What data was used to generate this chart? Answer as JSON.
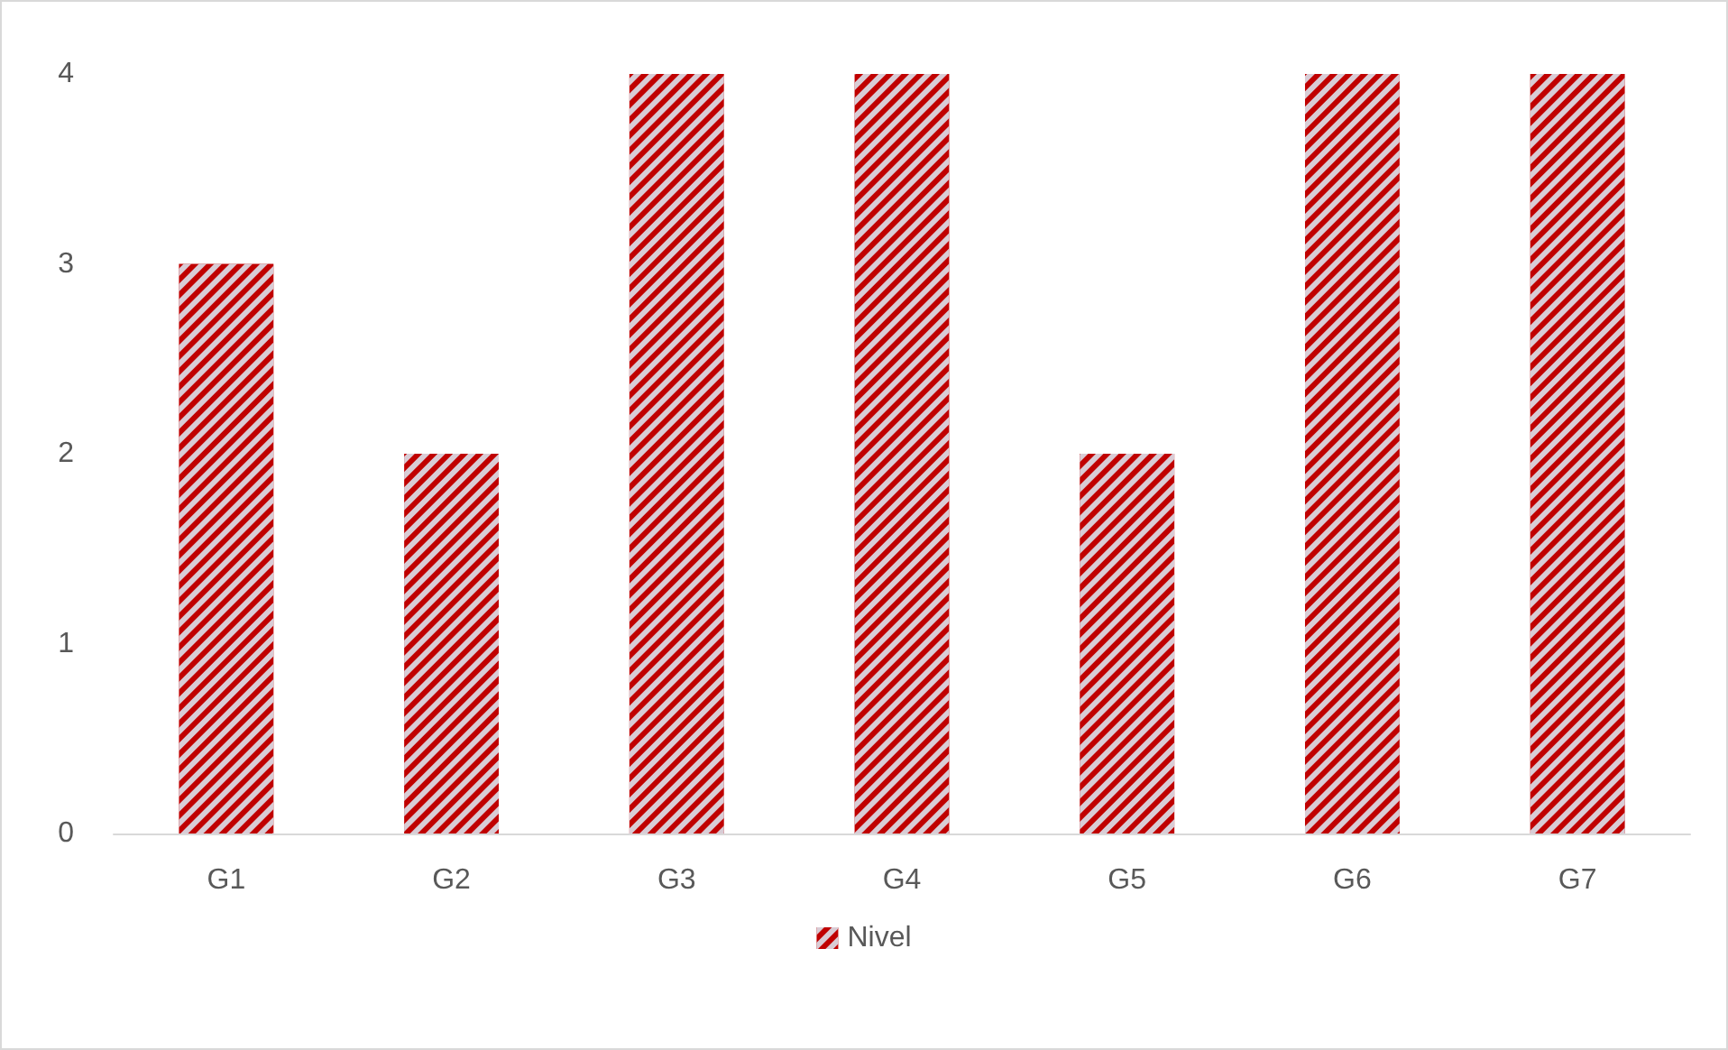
{
  "chart_data": {
    "type": "bar",
    "categories": [
      "G1",
      "G2",
      "G3",
      "G4",
      "G5",
      "G6",
      "G7"
    ],
    "series": [
      {
        "name": "Nivel",
        "color": "#c00000",
        "values": [
          3,
          2,
          4,
          4,
          2,
          4,
          4
        ]
      }
    ],
    "ylim": [
      0,
      4
    ],
    "yticks": [
      0,
      1,
      2,
      3,
      4
    ],
    "grid": false,
    "legend": "bottom"
  }
}
